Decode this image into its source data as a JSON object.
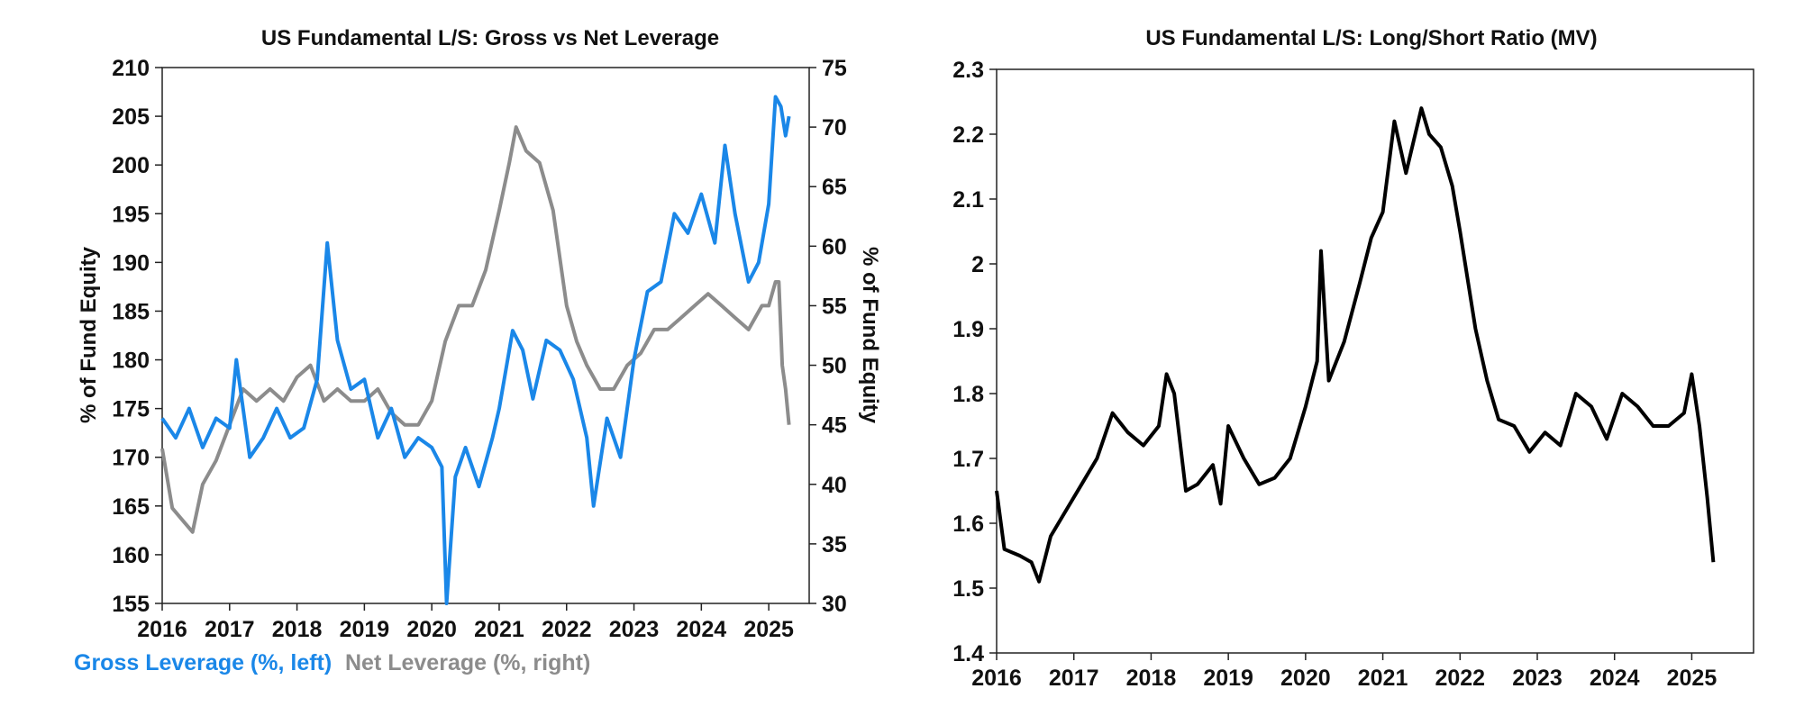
{
  "chart_data": [
    {
      "type": "line",
      "title": "US Fundamental L/S: Gross vs Net Leverage",
      "ylabel_left": "% of Fund Equity",
      "ylabel_right": "% of Fund Equity",
      "xlim": [
        2016,
        2025.6
      ],
      "x_ticks": [
        "2016",
        "2017",
        "2018",
        "2019",
        "2020",
        "2021",
        "2022",
        "2023",
        "2024",
        "2025"
      ],
      "ylim_left": [
        155,
        210
      ],
      "y_ticks_left": [
        "155",
        "160",
        "165",
        "170",
        "175",
        "180",
        "185",
        "190",
        "195",
        "200",
        "205",
        "210"
      ],
      "ylim_right": [
        30,
        75
      ],
      "y_ticks_right": [
        "30",
        "35",
        "40",
        "45",
        "50",
        "55",
        "60",
        "65",
        "70",
        "75"
      ],
      "legend_placement": "bottom-left",
      "series": [
        {
          "name": "Gross Leverage (%, left)",
          "axis": "left",
          "color": "#1a87e8",
          "x": [
            2016.0,
            2016.2,
            2016.4,
            2016.6,
            2016.8,
            2017.0,
            2017.1,
            2017.3,
            2017.5,
            2017.7,
            2017.9,
            2018.1,
            2018.3,
            2018.45,
            2018.6,
            2018.8,
            2019.0,
            2019.2,
            2019.4,
            2019.6,
            2019.8,
            2020.0,
            2020.15,
            2020.22,
            2020.35,
            2020.5,
            2020.7,
            2020.9,
            2021.0,
            2021.2,
            2021.35,
            2021.5,
            2021.7,
            2021.9,
            2022.1,
            2022.3,
            2022.4,
            2022.6,
            2022.8,
            2023.0,
            2023.2,
            2023.4,
            2023.6,
            2023.8,
            2024.0,
            2024.2,
            2024.35,
            2024.5,
            2024.7,
            2024.85,
            2025.0,
            2025.1,
            2025.18,
            2025.25,
            2025.3
          ],
          "y": [
            174,
            172,
            175,
            171,
            174,
            173,
            180,
            170,
            172,
            175,
            172,
            173,
            178,
            192,
            182,
            177,
            178,
            172,
            175,
            170,
            172,
            171,
            169,
            155,
            168,
            171,
            167,
            172,
            175,
            183,
            181,
            176,
            182,
            181,
            178,
            172,
            165,
            174,
            170,
            180,
            187,
            188,
            195,
            193,
            197,
            192,
            202,
            195,
            188,
            190,
            196,
            207,
            206,
            203,
            205
          ]
        },
        {
          "name": "Net Leverage (%, right)",
          "axis": "right",
          "color": "#8c8c8c",
          "x": [
            2016.0,
            2016.15,
            2016.3,
            2016.45,
            2016.6,
            2016.8,
            2017.0,
            2017.2,
            2017.4,
            2017.6,
            2017.8,
            2018.0,
            2018.2,
            2018.4,
            2018.6,
            2018.8,
            2019.0,
            2019.2,
            2019.4,
            2019.6,
            2019.8,
            2020.0,
            2020.2,
            2020.4,
            2020.6,
            2020.8,
            2021.0,
            2021.15,
            2021.25,
            2021.4,
            2021.6,
            2021.8,
            2022.0,
            2022.15,
            2022.3,
            2022.5,
            2022.7,
            2022.9,
            2023.1,
            2023.3,
            2023.5,
            2023.7,
            2023.9,
            2024.1,
            2024.3,
            2024.5,
            2024.7,
            2024.9,
            2025.0,
            2025.1,
            2025.15,
            2025.2,
            2025.25,
            2025.3
          ],
          "y": [
            43,
            38,
            37,
            36,
            40,
            42,
            45,
            48,
            47,
            48,
            47,
            49,
            50,
            47,
            48,
            47,
            47,
            48,
            46,
            45,
            45,
            47,
            52,
            55,
            55,
            58,
            63,
            67,
            70,
            68,
            67,
            63,
            55,
            52,
            50,
            48,
            48,
            50,
            51,
            53,
            53,
            54,
            55,
            56,
            55,
            54,
            53,
            55,
            55,
            57,
            57,
            50,
            48,
            45
          ]
        }
      ]
    },
    {
      "type": "line",
      "title": "US Fundamental L/S: Long/Short Ratio (MV)",
      "xlim": [
        2016,
        2025.8
      ],
      "x_ticks": [
        "2016",
        "2017",
        "2018",
        "2019",
        "2020",
        "2021",
        "2022",
        "2023",
        "2024",
        "2025"
      ],
      "ylim": [
        1.4,
        2.3
      ],
      "y_ticks": [
        "1.4",
        "1.5",
        "1.6",
        "1.7",
        "1.8",
        "1.9",
        "2",
        "2.1",
        "2.2",
        "2.3"
      ],
      "series": [
        {
          "color": "#000000",
          "x": [
            2016.0,
            2016.1,
            2016.3,
            2016.45,
            2016.55,
            2016.7,
            2016.9,
            2017.1,
            2017.3,
            2017.5,
            2017.7,
            2017.9,
            2018.1,
            2018.2,
            2018.3,
            2018.45,
            2018.6,
            2018.8,
            2018.9,
            2019.0,
            2019.2,
            2019.4,
            2019.6,
            2019.8,
            2020.0,
            2020.15,
            2020.2,
            2020.3,
            2020.5,
            2020.7,
            2020.85,
            2021.0,
            2021.15,
            2021.3,
            2021.5,
            2021.6,
            2021.75,
            2021.9,
            2022.0,
            2022.2,
            2022.35,
            2022.5,
            2022.7,
            2022.9,
            2023.1,
            2023.3,
            2023.5,
            2023.7,
            2023.9,
            2024.1,
            2024.3,
            2024.5,
            2024.7,
            2024.9,
            2025.0,
            2025.1,
            2025.2,
            2025.28
          ],
          "y": [
            1.65,
            1.56,
            1.55,
            1.54,
            1.51,
            1.58,
            1.62,
            1.66,
            1.7,
            1.77,
            1.74,
            1.72,
            1.75,
            1.83,
            1.8,
            1.65,
            1.66,
            1.69,
            1.63,
            1.75,
            1.7,
            1.66,
            1.67,
            1.7,
            1.78,
            1.85,
            2.02,
            1.82,
            1.88,
            1.97,
            2.04,
            2.08,
            2.22,
            2.14,
            2.24,
            2.2,
            2.18,
            2.12,
            2.05,
            1.9,
            1.82,
            1.76,
            1.75,
            1.71,
            1.74,
            1.72,
            1.8,
            1.78,
            1.73,
            1.8,
            1.78,
            1.75,
            1.75,
            1.77,
            1.83,
            1.75,
            1.64,
            1.54
          ]
        }
      ]
    }
  ]
}
